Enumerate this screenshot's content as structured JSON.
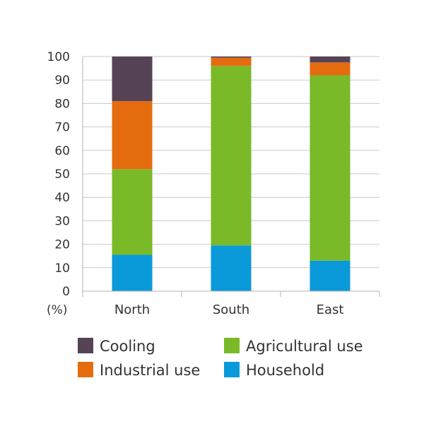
{
  "chart_data": {
    "type": "bar",
    "stacked": true,
    "categories": [
      "North",
      "South",
      "East"
    ],
    "series": [
      {
        "name": "Household",
        "color": "#0a9ad9",
        "values": [
          15.5,
          19.5,
          13
        ]
      },
      {
        "name": "Agricultural use",
        "color": "#7ab928",
        "values": [
          36.5,
          76.5,
          79
        ]
      },
      {
        "name": "Industrial use",
        "color": "#e46c0f",
        "values": [
          29,
          3.5,
          5.5
        ]
      },
      {
        "name": "Cooling",
        "color": "#564356",
        "values": [
          19,
          0.5,
          2.5
        ]
      }
    ],
    "ylabel": "(%)",
    "ylim": [
      0,
      100
    ],
    "yticks": [
      0,
      10,
      20,
      30,
      40,
      50,
      60,
      70,
      80,
      90,
      100
    ],
    "grid": true,
    "legend": {
      "placement": "bottom",
      "items": [
        "Cooling",
        "Agricultural use",
        "Industrial use",
        "Household"
      ]
    }
  }
}
